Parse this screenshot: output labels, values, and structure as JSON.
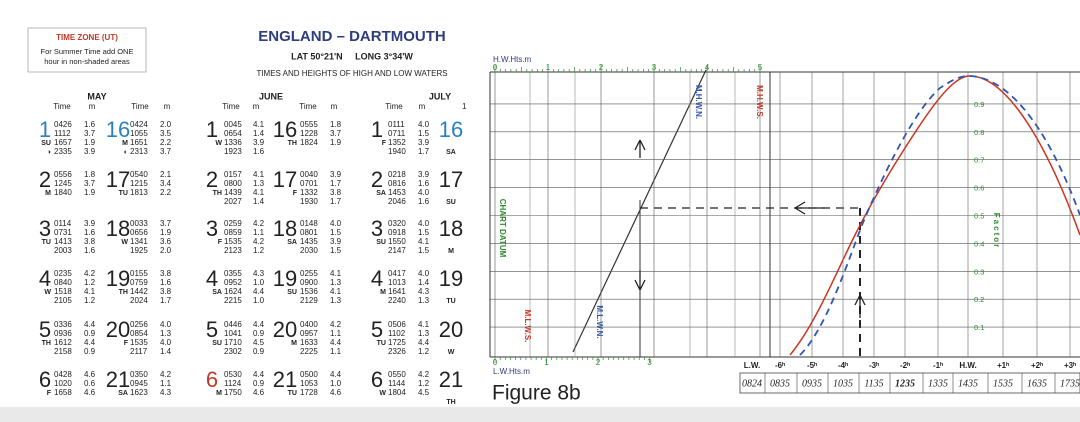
{
  "header": {
    "time_zone_title": "TIME ZONE (UT)",
    "time_zone_note": [
      "For Summer Time add ONE",
      "hour in non-shaded areas"
    ],
    "title": "ENGLAND – DARTMOUTH",
    "location": "LAT 50°21'N     LONG 3°34'W",
    "subtitle": "TIMES AND HEIGHTS OF HIGH AND LOW WATERS"
  },
  "table": {
    "time_label": "Time",
    "height_label": "m",
    "july_extra": "1",
    "months": [
      {
        "name": "MAY",
        "columns": [
          {
            "days": [
              {
                "day": "1",
                "color": "#2b80c2",
                "rows": [
                  {
                    "time": "0426",
                    "height": "1.6"
                  },
                  {
                    "time": "1112",
                    "height": "3.7"
                  },
                  {
                    "dow": "SU",
                    "time": "1657",
                    "height": "1.9"
                  },
                  {
                    "dow": "◑",
                    "time": "2335",
                    "height": "3.9"
                  }
                ]
              },
              {
                "day": "2",
                "rows": [
                  {
                    "time": "0556",
                    "height": "1.8"
                  },
                  {
                    "time": "1245",
                    "height": "3.7"
                  },
                  {
                    "dow": "M",
                    "time": "1840",
                    "height": "1.9"
                  }
                ]
              },
              {
                "day": "3",
                "rows": [
                  {
                    "time": "0114",
                    "height": "3.9"
                  },
                  {
                    "time": "0731",
                    "height": "1.6"
                  },
                  {
                    "dow": "TU",
                    "time": "1413",
                    "height": "3.8"
                  },
                  {
                    "time": "2003",
                    "height": "1.6"
                  }
                ]
              },
              {
                "day": "4",
                "rows": [
                  {
                    "time": "0235",
                    "height": "4.2"
                  },
                  {
                    "time": "0840",
                    "height": "1.2"
                  },
                  {
                    "dow": "W",
                    "time": "1518",
                    "height": "4.1"
                  },
                  {
                    "time": "2105",
                    "height": "1.2"
                  }
                ]
              },
              {
                "day": "5",
                "rows": [
                  {
                    "time": "0336",
                    "height": "4.4"
                  },
                  {
                    "time": "0936",
                    "height": "0.9"
                  },
                  {
                    "dow": "TH",
                    "time": "1612",
                    "height": "4.4"
                  },
                  {
                    "time": "2158",
                    "height": "0.9"
                  }
                ]
              },
              {
                "day": "6",
                "rows": [
                  {
                    "time": "0428",
                    "height": "4.6"
                  },
                  {
                    "time": "1020",
                    "height": "0.6"
                  },
                  {
                    "dow": "F",
                    "time": "1658",
                    "height": "4.6"
                  }
                ]
              }
            ]
          },
          {
            "days": [
              {
                "day": "16",
                "color": "#2b80c2",
                "rows": [
                  {
                    "time": "0424",
                    "height": "2.0"
                  },
                  {
                    "time": "1055",
                    "height": "3.5"
                  },
                  {
                    "dow": "M",
                    "time": "1651",
                    "height": "2.2"
                  },
                  {
                    "dow": "◐",
                    "time": "2313",
                    "height": "3.7"
                  }
                ]
              },
              {
                "day": "17",
                "rows": [
                  {
                    "time": "0540",
                    "height": "2.1"
                  },
                  {
                    "time": "1215",
                    "height": "3.4"
                  },
                  {
                    "dow": "TU",
                    "time": "1813",
                    "height": "2.2"
                  }
                ]
              },
              {
                "day": "18",
                "rows": [
                  {
                    "time": "0033",
                    "height": "3.7"
                  },
                  {
                    "time": "0656",
                    "height": "1.9"
                  },
                  {
                    "dow": "W",
                    "time": "1341",
                    "height": "3.6"
                  },
                  {
                    "time": "1925",
                    "height": "2.0"
                  }
                ]
              },
              {
                "day": "19",
                "rows": [
                  {
                    "time": "0155",
                    "height": "3.8"
                  },
                  {
                    "time": "0759",
                    "height": "1.6"
                  },
                  {
                    "dow": "TH",
                    "time": "1442",
                    "height": "3.8"
                  },
                  {
                    "time": "2024",
                    "height": "1.7"
                  }
                ]
              },
              {
                "day": "20",
                "rows": [
                  {
                    "time": "0256",
                    "height": "4.0"
                  },
                  {
                    "time": "0854",
                    "height": "1.3"
                  },
                  {
                    "dow": "F",
                    "time": "1535",
                    "height": "4.0"
                  },
                  {
                    "time": "2117",
                    "height": "1.4"
                  }
                ]
              },
              {
                "day": "21",
                "rows": [
                  {
                    "time": "0350",
                    "height": "4.2"
                  },
                  {
                    "time": "0945",
                    "height": "1.1"
                  },
                  {
                    "dow": "SA",
                    "time": "1623",
                    "height": "4.3"
                  }
                ]
              }
            ]
          }
        ]
      },
      {
        "name": "JUNE",
        "columns": [
          {
            "days": [
              {
                "day": "1",
                "rows": [
                  {
                    "time": "0045",
                    "height": "4.1"
                  },
                  {
                    "time": "0654",
                    "height": "1.4"
                  },
                  {
                    "dow": "W",
                    "time": "1336",
                    "height": "3.9"
                  },
                  {
                    "time": "1923",
                    "height": "1.6"
                  }
                ]
              },
              {
                "day": "2",
                "rows": [
                  {
                    "time": "0157",
                    "height": "4.1"
                  },
                  {
                    "time": "0800",
                    "height": "1.3"
                  },
                  {
                    "dow": "TH",
                    "time": "1439",
                    "height": "4.1"
                  },
                  {
                    "time": "2027",
                    "height": "1.4"
                  }
                ]
              },
              {
                "day": "3",
                "rows": [
                  {
                    "time": "0259",
                    "height": "4.2"
                  },
                  {
                    "time": "0859",
                    "height": "1.1"
                  },
                  {
                    "dow": "F",
                    "time": "1535",
                    "height": "4.2"
                  },
                  {
                    "time": "2123",
                    "height": "1.2"
                  }
                ]
              },
              {
                "day": "4",
                "rows": [
                  {
                    "time": "0355",
                    "height": "4.3"
                  },
                  {
                    "time": "0952",
                    "height": "1.0"
                  },
                  {
                    "dow": "SA",
                    "time": "1624",
                    "height": "4.4"
                  },
                  {
                    "time": "2215",
                    "height": "1.0"
                  }
                ]
              },
              {
                "day": "5",
                "rows": [
                  {
                    "time": "0446",
                    "height": "4.4"
                  },
                  {
                    "time": "1041",
                    "height": "0.9"
                  },
                  {
                    "dow": "SU",
                    "time": "1710",
                    "height": "4.5"
                  },
                  {
                    "time": "2302",
                    "height": "0.9"
                  }
                ]
              },
              {
                "day": "6",
                "color": "#c0392b",
                "rows": [
                  {
                    "time": "0530",
                    "height": "4.4"
                  },
                  {
                    "time": "1124",
                    "height": "0.9"
                  },
                  {
                    "dow": "M",
                    "time": "1750",
                    "height": "4.6"
                  }
                ]
              }
            ]
          },
          {
            "days": [
              {
                "day": "16",
                "rows": [
                  {
                    "time": "0555",
                    "height": "1.8"
                  },
                  {
                    "time": "1228",
                    "height": "3.7"
                  },
                  {
                    "dow": "TH",
                    "time": "1824",
                    "height": "1.9"
                  }
                ]
              },
              {
                "day": "17",
                "rows": [
                  {
                    "time": "0040",
                    "height": "3.9"
                  },
                  {
                    "time": "0701",
                    "height": "1.7"
                  },
                  {
                    "dow": "F",
                    "time": "1332",
                    "height": "3.8"
                  },
                  {
                    "time": "1930",
                    "height": "1.7"
                  }
                ]
              },
              {
                "day": "18",
                "rows": [
                  {
                    "time": "0148",
                    "height": "4.0"
                  },
                  {
                    "time": "0801",
                    "height": "1.5"
                  },
                  {
                    "dow": "SA",
                    "time": "1435",
                    "height": "3.9"
                  },
                  {
                    "time": "2030",
                    "height": "1.5"
                  }
                ]
              },
              {
                "day": "19",
                "rows": [
                  {
                    "time": "0255",
                    "height": "4.1"
                  },
                  {
                    "time": "0900",
                    "height": "1.3"
                  },
                  {
                    "dow": "SU",
                    "time": "1536",
                    "height": "4.1"
                  },
                  {
                    "time": "2129",
                    "height": "1.3"
                  }
                ]
              },
              {
                "day": "20",
                "rows": [
                  {
                    "time": "0400",
                    "height": "4.2"
                  },
                  {
                    "time": "0957",
                    "height": "1.1"
                  },
                  {
                    "dow": "M",
                    "time": "1633",
                    "height": "4.4"
                  },
                  {
                    "time": "2225",
                    "height": "1.1"
                  }
                ]
              },
              {
                "day": "21",
                "rows": [
                  {
                    "time": "0500",
                    "height": "4.4"
                  },
                  {
                    "time": "1053",
                    "height": "1.0"
                  },
                  {
                    "dow": "TU",
                    "time": "1728",
                    "height": "4.6"
                  }
                ]
              }
            ]
          }
        ]
      },
      {
        "name": "JULY",
        "columns": [
          {
            "days": [
              {
                "day": "1",
                "rows": [
                  {
                    "time": "0111",
                    "height": "4.0"
                  },
                  {
                    "time": "0711",
                    "height": "1.5"
                  },
                  {
                    "dow": "F",
                    "time": "1352",
                    "height": "3.9"
                  },
                  {
                    "time": "1940",
                    "height": "1.7"
                  }
                ]
              },
              {
                "day": "2",
                "rows": [
                  {
                    "time": "0218",
                    "height": "3.9"
                  },
                  {
                    "time": "0816",
                    "height": "1.6"
                  },
                  {
                    "dow": "SA",
                    "time": "1453",
                    "height": "4.0"
                  },
                  {
                    "time": "2046",
                    "height": "1.6"
                  }
                ]
              },
              {
                "day": "3",
                "rows": [
                  {
                    "time": "0320",
                    "height": "4.0"
                  },
                  {
                    "time": "0918",
                    "height": "1.5"
                  },
                  {
                    "dow": "SU",
                    "time": "1550",
                    "height": "4.1"
                  },
                  {
                    "time": "2147",
                    "height": "1.5"
                  }
                ]
              },
              {
                "day": "4",
                "rows": [
                  {
                    "time": "0417",
                    "height": "4.0"
                  },
                  {
                    "time": "1013",
                    "height": "1.4"
                  },
                  {
                    "dow": "M",
                    "time": "1641",
                    "height": "4.3"
                  },
                  {
                    "time": "2240",
                    "height": "1.3"
                  }
                ]
              },
              {
                "day": "5",
                "rows": [
                  {
                    "time": "0506",
                    "height": "4.1"
                  },
                  {
                    "time": "1102",
                    "height": "1.3"
                  },
                  {
                    "dow": "TU",
                    "time": "1725",
                    "height": "4.4"
                  },
                  {
                    "time": "2326",
                    "height": "1.2"
                  }
                ]
              },
              {
                "day": "6",
                "rows": [
                  {
                    "time": "0550",
                    "height": "4.2"
                  },
                  {
                    "time": "1144",
                    "height": "1.2"
                  },
                  {
                    "dow": "W",
                    "time": "1804",
                    "height": "4.5"
                  }
                ]
              }
            ]
          },
          {
            "days": [
              {
                "day": "16",
                "color": "#2b80c2",
                "dow": "SA"
              },
              {
                "day": "17",
                "dow": "SU"
              },
              {
                "day": "18",
                "dow": "M"
              },
              {
                "day": "19",
                "dow": "TU"
              },
              {
                "day": "20",
                "dow": "W"
              },
              {
                "day": "21",
                "dow": "TH"
              }
            ]
          }
        ]
      }
    ]
  },
  "diagram": {
    "hw_scale_title": "H.W.Hts.m",
    "hw_scale": [
      0,
      1,
      2,
      3,
      4,
      5
    ],
    "lw_scale_title": "L.W.Hts.m",
    "lw_scale": [
      0,
      1,
      2,
      3
    ],
    "factor_title": "Factor",
    "factor_ticks": [
      0.1,
      0.2,
      0.3,
      0.4,
      0.5,
      0.6,
      0.7,
      0.8,
      0.9
    ],
    "chart_datum": "CHART DATUM",
    "mhwn": "M.H.W.N.",
    "mhws": "M.H.W.S.",
    "mlws": "M.L.W.S.",
    "mlwn": "M.L.W.N.",
    "hours": [
      "L.W.",
      "-6ʰ",
      "-5ʰ",
      "-4ʰ",
      "-3ʰ",
      "-2ʰ",
      "-1ʰ",
      "H.W.",
      "+1ʰ",
      "+2ʰ",
      "+3ʰ"
    ],
    "handwritten_times": [
      "0824",
      "0835",
      "0935",
      "1035",
      "1135",
      "1235",
      "1335",
      "1435",
      "1535",
      "1635",
      "1735"
    ],
    "caption": "Figure 8b"
  }
}
